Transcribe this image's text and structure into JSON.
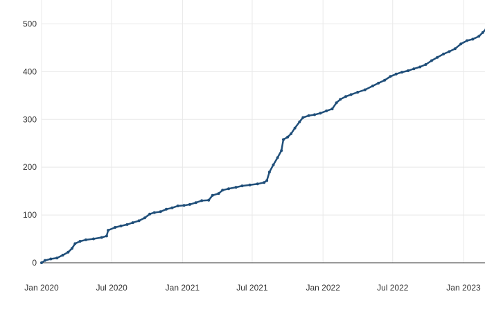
{
  "chart_data": {
    "type": "line",
    "title": "",
    "xlabel": "",
    "ylabel": "",
    "x_range": [
      "2020-01-01",
      "2023-03-01"
    ],
    "ylim": [
      0,
      550
    ],
    "y_ticks": [
      0,
      100,
      200,
      300,
      400,
      500
    ],
    "y_tick_labels": [
      "0",
      "100",
      "200",
      "300",
      "400",
      "500"
    ],
    "x_ticks": [
      "2020-01-01",
      "2020-07-01",
      "2021-01-01",
      "2021-07-01",
      "2022-01-01",
      "2022-07-01",
      "2023-01-01"
    ],
    "x_tick_labels": [
      "Jan 2020",
      "Jul 2020",
      "Jan 2021",
      "Jul 2021",
      "Jan 2022",
      "Jul 2022",
      "Jan 2023"
    ],
    "grid": true,
    "line_color": "#1f4e79",
    "grid_color": "#e8e8e8",
    "axis_color": "#333333",
    "series": [
      {
        "name": "",
        "points": [
          [
            "2020-01-01",
            0
          ],
          [
            "2020-01-10",
            5
          ],
          [
            "2020-01-25",
            8
          ],
          [
            "2020-02-10",
            10
          ],
          [
            "2020-02-25",
            16
          ],
          [
            "2020-03-10",
            22
          ],
          [
            "2020-03-20",
            30
          ],
          [
            "2020-03-28",
            40
          ],
          [
            "2020-04-10",
            45
          ],
          [
            "2020-04-25",
            48
          ],
          [
            "2020-05-15",
            50
          ],
          [
            "2020-06-05",
            53
          ],
          [
            "2020-06-18",
            56
          ],
          [
            "2020-06-22",
            68
          ],
          [
            "2020-07-10",
            74
          ],
          [
            "2020-07-25",
            77
          ],
          [
            "2020-08-10",
            80
          ],
          [
            "2020-08-25",
            84
          ],
          [
            "2020-09-10",
            88
          ],
          [
            "2020-09-25",
            94
          ],
          [
            "2020-10-08",
            102
          ],
          [
            "2020-10-20",
            105
          ],
          [
            "2020-11-05",
            107
          ],
          [
            "2020-11-20",
            112
          ],
          [
            "2020-12-05",
            115
          ],
          [
            "2020-12-20",
            119
          ],
          [
            "2021-01-05",
            120
          ],
          [
            "2021-01-20",
            122
          ],
          [
            "2021-02-05",
            126
          ],
          [
            "2021-02-20",
            130
          ],
          [
            "2021-03-10",
            131
          ],
          [
            "2021-03-20",
            141
          ],
          [
            "2021-04-05",
            145
          ],
          [
            "2021-04-15",
            152
          ],
          [
            "2021-05-01",
            155
          ],
          [
            "2021-05-20",
            158
          ],
          [
            "2021-06-05",
            161
          ],
          [
            "2021-06-25",
            163
          ],
          [
            "2021-07-15",
            165
          ],
          [
            "2021-08-01",
            168
          ],
          [
            "2021-08-08",
            172
          ],
          [
            "2021-08-15",
            190
          ],
          [
            "2021-08-25",
            205
          ],
          [
            "2021-09-05",
            220
          ],
          [
            "2021-09-15",
            235
          ],
          [
            "2021-09-20",
            258
          ],
          [
            "2021-10-01",
            263
          ],
          [
            "2021-10-10",
            270
          ],
          [
            "2021-10-20",
            282
          ],
          [
            "2021-11-01",
            295
          ],
          [
            "2021-11-10",
            304
          ],
          [
            "2021-11-25",
            308
          ],
          [
            "2021-12-10",
            310
          ],
          [
            "2021-12-25",
            313
          ],
          [
            "2022-01-10",
            318
          ],
          [
            "2022-01-25",
            322
          ],
          [
            "2022-02-05",
            335
          ],
          [
            "2022-02-15",
            342
          ],
          [
            "2022-03-01",
            348
          ],
          [
            "2022-03-15",
            352
          ],
          [
            "2022-04-01",
            357
          ],
          [
            "2022-04-20",
            362
          ],
          [
            "2022-05-10",
            370
          ],
          [
            "2022-05-25",
            376
          ],
          [
            "2022-06-10",
            382
          ],
          [
            "2022-06-25",
            390
          ],
          [
            "2022-07-10",
            395
          ],
          [
            "2022-07-25",
            399
          ],
          [
            "2022-08-10",
            402
          ],
          [
            "2022-08-25",
            406
          ],
          [
            "2022-09-10",
            410
          ],
          [
            "2022-09-25",
            415
          ],
          [
            "2022-10-10",
            423
          ],
          [
            "2022-10-25",
            430
          ],
          [
            "2022-11-10",
            437
          ],
          [
            "2022-11-25",
            442
          ],
          [
            "2022-12-10",
            448
          ],
          [
            "2022-12-25",
            458
          ],
          [
            "2023-01-10",
            465
          ],
          [
            "2023-01-25",
            468
          ],
          [
            "2023-02-10",
            474
          ],
          [
            "2023-02-20",
            482
          ],
          [
            "2023-03-01",
            490
          ]
        ]
      }
    ]
  }
}
